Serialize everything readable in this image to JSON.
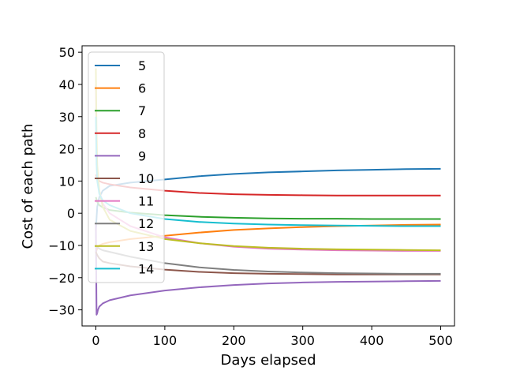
{
  "chart_data": {
    "type": "line",
    "title": "",
    "xlabel": "Days elapsed",
    "ylabel": "Cost of each path",
    "xlim": [
      -20,
      520
    ],
    "ylim": [
      -35,
      52
    ],
    "xticks": [
      0,
      100,
      200,
      300,
      400,
      500
    ],
    "yticks": [
      -30,
      -20,
      -10,
      0,
      10,
      20,
      30,
      40,
      50
    ],
    "xtick_labels": [
      "0",
      "100",
      "200",
      "300",
      "400",
      "500"
    ],
    "ytick_labels": [
      "−30",
      "−20",
      "−10",
      "0",
      "10",
      "20",
      "30",
      "40",
      "50"
    ],
    "grid": false,
    "legend_position": "upper-left",
    "series": [
      {
        "name": "5",
        "color": "#1f77b4",
        "x": [
          0,
          2,
          5,
          10,
          20,
          50,
          100,
          150,
          200,
          250,
          300,
          350,
          400,
          450,
          500
        ],
        "y": [
          -5,
          2,
          5,
          7,
          8.5,
          9.5,
          10.5,
          11.5,
          12.2,
          12.7,
          13.0,
          13.3,
          13.5,
          13.7,
          13.8
        ]
      },
      {
        "name": "6",
        "color": "#ff7f0e",
        "x": [
          0,
          2,
          5,
          10,
          20,
          50,
          100,
          150,
          200,
          250,
          300,
          350,
          400,
          450,
          500
        ],
        "y": [
          -12,
          -11,
          -10,
          -9.5,
          -9,
          -8,
          -7,
          -6,
          -5.2,
          -4.7,
          -4.3,
          -4.0,
          -3.8,
          -3.6,
          -3.5
        ]
      },
      {
        "name": "7",
        "color": "#2ca02c",
        "x": [
          0,
          2,
          5,
          10,
          20,
          50,
          100,
          150,
          200,
          250,
          300,
          350,
          400,
          450,
          500
        ],
        "y": [
          5,
          3.5,
          2.5,
          1.8,
          1.0,
          0.2,
          -0.6,
          -1.1,
          -1.4,
          -1.6,
          -1.7,
          -1.7,
          -1.8,
          -1.8,
          -1.8
        ]
      },
      {
        "name": "8",
        "color": "#d62728",
        "x": [
          0,
          2,
          5,
          10,
          20,
          50,
          100,
          150,
          200,
          250,
          300,
          350,
          400,
          450,
          500
        ],
        "y": [
          12,
          11,
          10,
          9.5,
          9,
          8,
          7,
          6.3,
          5.9,
          5.7,
          5.6,
          5.5,
          5.5,
          5.5,
          5.5
        ]
      },
      {
        "name": "9",
        "color": "#9467bd",
        "x": [
          0,
          1,
          2,
          3,
          5,
          10,
          20,
          50,
          100,
          150,
          200,
          250,
          300,
          350,
          400,
          450,
          500
        ],
        "y": [
          -3,
          -31.5,
          -31,
          -30,
          -29,
          -28,
          -27,
          -25.5,
          -24,
          -23,
          -22.3,
          -21.8,
          -21.5,
          -21.3,
          -21.2,
          -21.1,
          -21.0
        ]
      },
      {
        "name": "10",
        "color": "#8c564b",
        "x": [
          0,
          2,
          5,
          10,
          20,
          50,
          100,
          150,
          200,
          250,
          300,
          350,
          400,
          450,
          500
        ],
        "y": [
          -12,
          -13,
          -14,
          -15,
          -15.5,
          -16.5,
          -17.5,
          -18.2,
          -18.6,
          -18.8,
          -18.9,
          -19.0,
          -19.0,
          -19.0,
          -19.0
        ]
      },
      {
        "name": "11",
        "color": "#e377c2",
        "x": [
          0,
          1,
          2,
          5,
          10,
          20,
          50,
          100,
          150,
          200,
          250,
          300,
          350,
          400,
          450,
          500
        ],
        "y": [
          40,
          20,
          12,
          7,
          3,
          0,
          -4,
          -7.5,
          -9.3,
          -10.4,
          -11.0,
          -11.3,
          -11.5,
          -11.6,
          -11.7,
          -11.7
        ]
      },
      {
        "name": "12",
        "color": "#7f7f7f",
        "x": [
          0,
          2,
          5,
          10,
          20,
          50,
          100,
          150,
          200,
          250,
          300,
          350,
          400,
          450,
          500
        ],
        "y": [
          -10,
          -10.5,
          -11,
          -11.5,
          -12,
          -13.5,
          -15.5,
          -16.8,
          -17.6,
          -18.1,
          -18.4,
          -18.6,
          -18.7,
          -18.8,
          -18.8
        ]
      },
      {
        "name": "13",
        "color": "#bcbd22",
        "x": [
          0,
          1,
          2,
          5,
          10,
          20,
          50,
          100,
          150,
          200,
          250,
          300,
          350,
          400,
          450,
          500
        ],
        "y": [
          45,
          25,
          15,
          7,
          2,
          -2,
          -5.5,
          -8,
          -9.3,
          -10.2,
          -10.7,
          -11.0,
          -11.2,
          -11.3,
          -11.4,
          -11.5
        ]
      },
      {
        "name": "14",
        "color": "#17becf",
        "x": [
          0,
          1,
          2,
          5,
          10,
          20,
          50,
          100,
          150,
          200,
          250,
          300,
          350,
          400,
          450,
          500
        ],
        "y": [
          30,
          15,
          10,
          6,
          4,
          2.5,
          0,
          -1.8,
          -2.7,
          -3.2,
          -3.5,
          -3.7,
          -3.8,
          -3.9,
          -4.0,
          -4.0
        ]
      }
    ]
  }
}
